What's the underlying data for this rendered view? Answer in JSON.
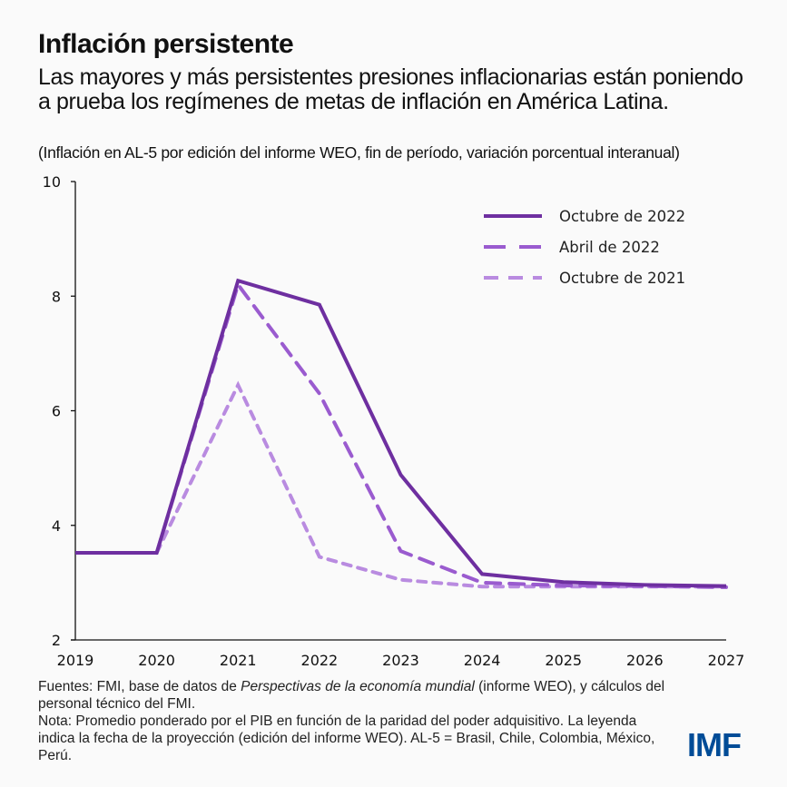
{
  "header": {
    "title": "Inflación persistente",
    "subtitle": "Las mayores y más persistentes presiones inflacionarias están poniendo a prueba los regímenes de metas de inflación en América Latina.",
    "units": "(Inflación en AL-5 por edición del informe WEO, fin de período, variación porcentual interanual)"
  },
  "footer": {
    "sources_prefix": "Fuentes: FMI, base de datos de ",
    "sources_italic": "Perspectivas de la economía  mundial",
    "sources_suffix": " (informe  WEO), y cálculos del personal técnico del FMI.",
    "note": "Nota: Promedio ponderado por el PIB en función de la paridad del poder adquisitivo. La leyenda indica la fecha de la proyección (edición del informe  WEO). AL-5 = Brasil, Chile, Colombia,  México, Perú.",
    "logo": "IMF",
    "logo_color": "#004C97"
  },
  "chart_data": {
    "type": "line",
    "title": "Inflación persistente",
    "xlabel": "",
    "ylabel": "",
    "x": [
      "2019",
      "2020",
      "2021",
      "2022",
      "2023",
      "2024",
      "2025",
      "2026",
      "2027"
    ],
    "ylim": [
      2,
      10
    ],
    "yticks": [
      2,
      4,
      6,
      8,
      10
    ],
    "grid": false,
    "legend_position": "top-right",
    "series": [
      {
        "name": "Octubre de 2022",
        "color": "#6E2FA0",
        "style": "solid",
        "values": [
          3.52,
          3.52,
          8.27,
          7.85,
          4.88,
          3.15,
          3.01,
          2.96,
          2.94
        ]
      },
      {
        "name": "Abril de 2022",
        "color": "#9A5BCF",
        "style": "dashed",
        "values": [
          null,
          3.52,
          8.2,
          6.3,
          3.55,
          3.0,
          2.95,
          2.94,
          2.92
        ]
      },
      {
        "name": "Octubre de 2021",
        "color": "#B98BE0",
        "style": "short-dashed",
        "values": [
          null,
          3.52,
          6.45,
          3.45,
          3.05,
          2.93,
          2.93,
          2.93,
          2.93
        ]
      }
    ]
  }
}
